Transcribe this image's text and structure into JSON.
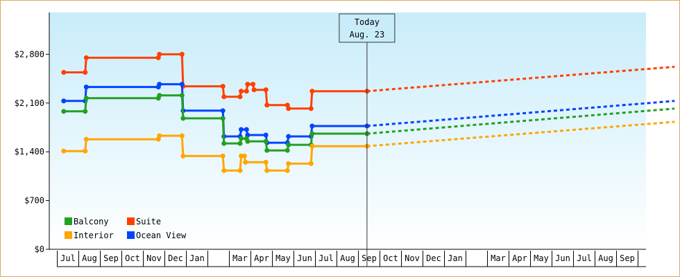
{
  "chart_data": {
    "type": "line",
    "title": "",
    "xlabel": "",
    "ylabel": "",
    "ylim": [
      0,
      3400
    ],
    "y_ticks": [
      {
        "value": 0,
        "label": "$0"
      },
      {
        "value": 700,
        "label": "$700"
      },
      {
        "value": 1400,
        "label": "$1,400"
      },
      {
        "value": 2100,
        "label": "$2,100"
      },
      {
        "value": 2800,
        "label": "$2,800"
      }
    ],
    "x_ticks": [
      "Jul",
      "Aug",
      "Sep",
      "Oct",
      "Nov",
      "Dec",
      "Jan",
      "",
      "Mar",
      "Apr",
      "May",
      "Jun",
      "Jul",
      "Aug",
      "Sep",
      "Oct",
      "Nov",
      "Dec",
      "Jan",
      "",
      "Mar",
      "Apr",
      "May",
      "Jun",
      "Jul",
      "Aug",
      "Sep"
    ],
    "today": {
      "label_line1": "Today",
      "label_line2": "Aug. 23",
      "month_index": 13.9
    },
    "legend": [
      {
        "name": "Balcony",
        "color": "#22a022"
      },
      {
        "name": "Suite",
        "color": "#ff4000"
      },
      {
        "name": "Interior",
        "color": "#ffa500"
      },
      {
        "name": "Ocean View",
        "color": "#0044ff"
      }
    ],
    "series": [
      {
        "name": "Suite",
        "color": "#ff4000",
        "points": [
          [
            -0.2,
            2540
          ],
          [
            0.8,
            2540
          ],
          [
            0.85,
            2750
          ],
          [
            4.2,
            2750
          ],
          [
            4.25,
            2800
          ],
          [
            5.3,
            2800
          ],
          [
            5.35,
            2340
          ],
          [
            7.2,
            2340
          ],
          [
            7.25,
            2190
          ],
          [
            8.0,
            2190
          ],
          [
            8.05,
            2270
          ],
          [
            8.3,
            2270
          ],
          [
            8.35,
            2370
          ],
          [
            8.6,
            2370
          ],
          [
            8.65,
            2290
          ],
          [
            9.2,
            2290
          ],
          [
            9.25,
            2070
          ],
          [
            10.2,
            2070
          ],
          [
            10.25,
            2020
          ],
          [
            11.3,
            2020
          ],
          [
            11.35,
            2270
          ],
          [
            13.9,
            2270
          ]
        ],
        "forecast_end": [
          28.2,
          2620
        ]
      },
      {
        "name": "Ocean View",
        "color": "#0044ff",
        "points": [
          [
            -0.2,
            2130
          ],
          [
            0.8,
            2130
          ],
          [
            0.85,
            2330
          ],
          [
            4.2,
            2330
          ],
          [
            4.25,
            2370
          ],
          [
            5.3,
            2370
          ],
          [
            5.35,
            1990
          ],
          [
            7.2,
            1990
          ],
          [
            7.25,
            1620
          ],
          [
            8.0,
            1620
          ],
          [
            8.05,
            1720
          ],
          [
            8.3,
            1720
          ],
          [
            8.35,
            1640
          ],
          [
            9.2,
            1640
          ],
          [
            9.25,
            1530
          ],
          [
            10.2,
            1530
          ],
          [
            10.25,
            1620
          ],
          [
            11.3,
            1620
          ],
          [
            11.35,
            1770
          ],
          [
            13.9,
            1770
          ]
        ],
        "forecast_end": [
          28.2,
          2130
        ]
      },
      {
        "name": "Balcony",
        "color": "#22a022",
        "points": [
          [
            -0.2,
            1980
          ],
          [
            0.8,
            1980
          ],
          [
            0.85,
            2170
          ],
          [
            4.2,
            2170
          ],
          [
            4.25,
            2210
          ],
          [
            5.3,
            2210
          ],
          [
            5.35,
            1880
          ],
          [
            7.2,
            1880
          ],
          [
            7.25,
            1520
          ],
          [
            8.0,
            1520
          ],
          [
            8.05,
            1590
          ],
          [
            8.3,
            1590
          ],
          [
            8.35,
            1550
          ],
          [
            9.2,
            1550
          ],
          [
            9.25,
            1420
          ],
          [
            10.2,
            1420
          ],
          [
            10.25,
            1500
          ],
          [
            11.3,
            1500
          ],
          [
            11.35,
            1660
          ],
          [
            13.9,
            1660
          ]
        ],
        "forecast_end": [
          28.2,
          2020
        ]
      },
      {
        "name": "Interior",
        "color": "#ffa500",
        "points": [
          [
            -0.2,
            1410
          ],
          [
            0.8,
            1410
          ],
          [
            0.85,
            1580
          ],
          [
            4.2,
            1580
          ],
          [
            4.25,
            1630
          ],
          [
            5.3,
            1630
          ],
          [
            5.35,
            1340
          ],
          [
            7.2,
            1340
          ],
          [
            7.25,
            1130
          ],
          [
            8.0,
            1130
          ],
          [
            8.05,
            1340
          ],
          [
            8.2,
            1340
          ],
          [
            8.25,
            1250
          ],
          [
            9.2,
            1250
          ],
          [
            9.25,
            1130
          ],
          [
            10.2,
            1130
          ],
          [
            10.25,
            1230
          ],
          [
            11.3,
            1230
          ],
          [
            11.35,
            1480
          ],
          [
            13.9,
            1480
          ]
        ],
        "forecast_end": [
          28.2,
          1830
        ]
      }
    ]
  }
}
